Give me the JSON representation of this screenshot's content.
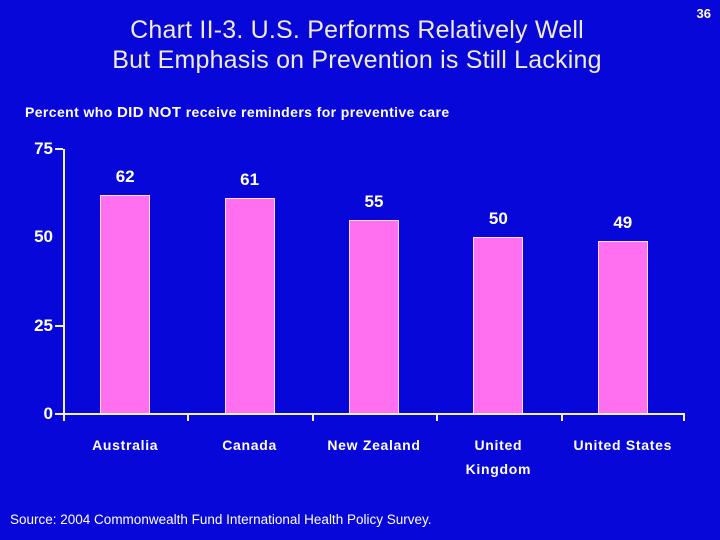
{
  "slide": {
    "number": "36",
    "title_line1": "Chart II-3. U.S. Performs Relatively Well",
    "title_line2": "But Emphasis on Prevention is Still Lacking",
    "source": "Source: 2004 Commonwealth Fund International Health Policy Survey."
  },
  "heading": {
    "prefix": "Percent who ",
    "emphasis": "DID NOT",
    "suffix": " receive reminders for preventive care"
  },
  "colors": {
    "background": "#0707DA",
    "bar_fill": "#FF70F0",
    "bar_border": "#F2DCF2",
    "axis": "#F0EFE8",
    "title_text": "#EFEBD4",
    "text": "#FFFFFF"
  },
  "chart_data": {
    "type": "bar",
    "title": "Percent who DID NOT receive reminders for preventive care",
    "categories": [
      "Australia",
      "Canada",
      "New Zealand",
      "United Kingdom",
      "United States"
    ],
    "values": [
      62,
      61,
      55,
      50,
      49
    ],
    "data_labels": [
      "62",
      "61",
      "55",
      "50",
      "49"
    ],
    "xlabel": "",
    "ylabel": "",
    "ylim": [
      0,
      75
    ],
    "yticks": [
      {
        "value": 75,
        "label": "75",
        "tick_mark": true
      },
      {
        "value": 50,
        "label": "50",
        "tick_mark": false
      },
      {
        "value": 25,
        "label": "25",
        "tick_mark": true
      },
      {
        "value": 0,
        "label": "0",
        "tick_mark": true
      }
    ],
    "grid": false,
    "legend": "none",
    "bar_color_hex": "#FF70F0",
    "xlabel_lines": [
      [
        "Australia"
      ],
      [
        "Canada"
      ],
      [
        "New Zealand"
      ],
      [
        "United",
        "Kingdom"
      ],
      [
        "United States"
      ]
    ]
  }
}
